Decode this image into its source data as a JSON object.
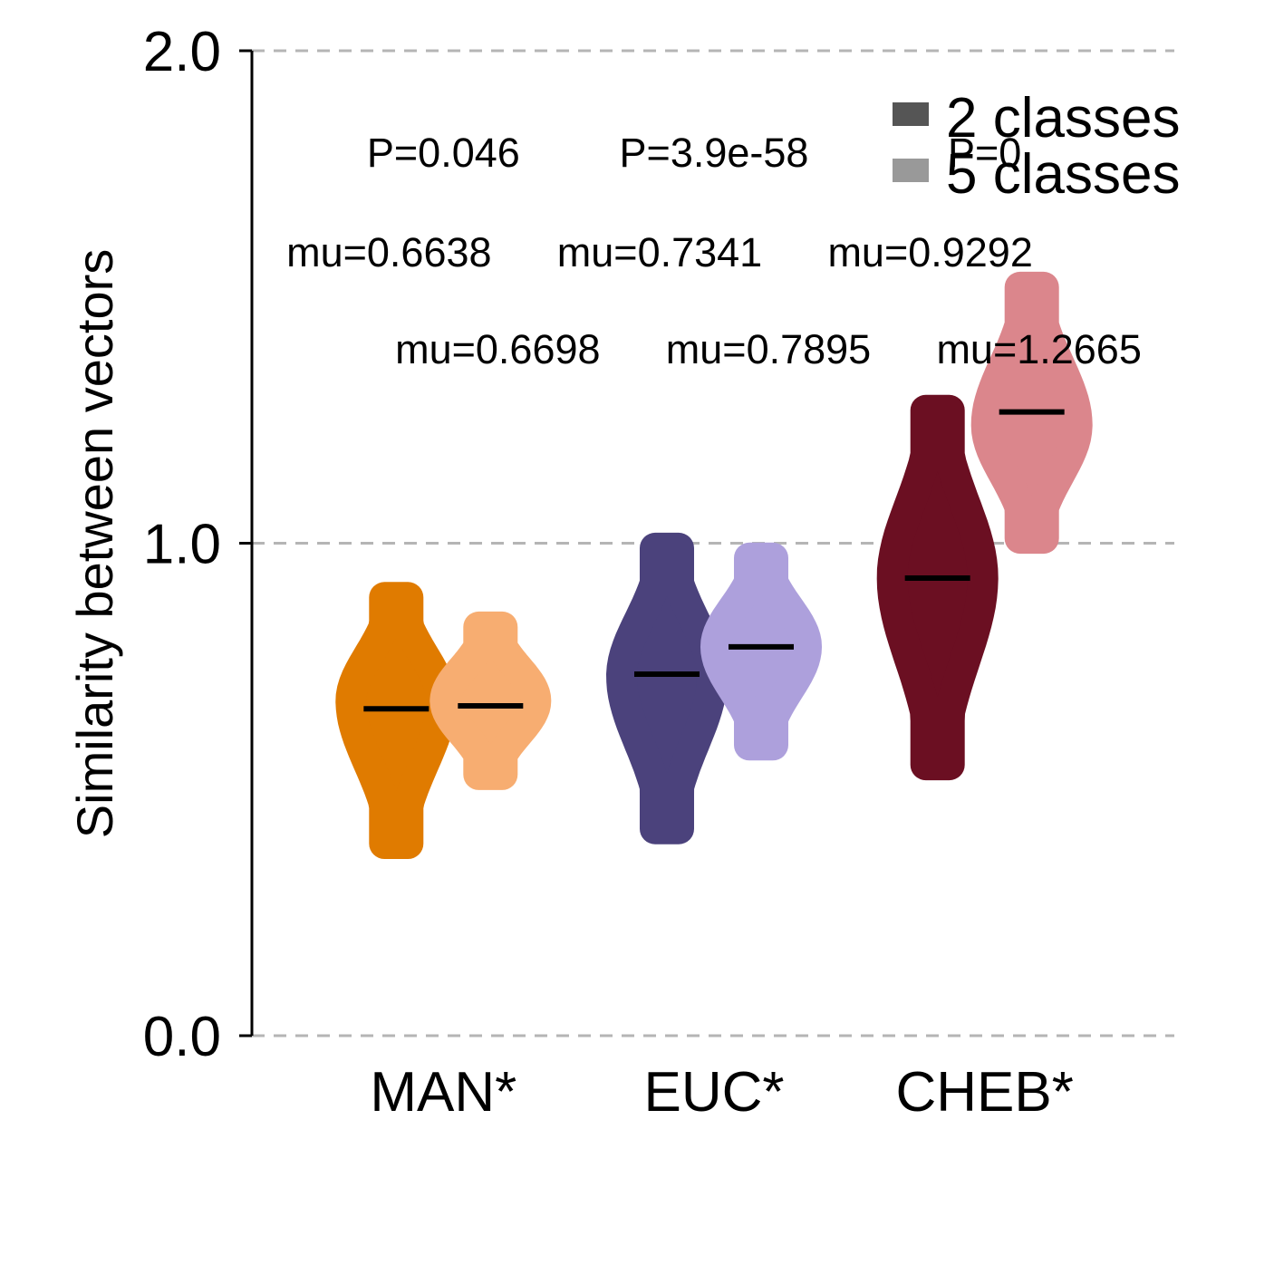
{
  "chart_data": {
    "type": "violin",
    "ylabel": "Similarity between vectors",
    "ylim": [
      0.0,
      2.0
    ],
    "yticks": [
      "0.0",
      "1.0",
      "2.0"
    ],
    "grid": "horizontal dashed at ticks",
    "legend_position": "top-right",
    "categories": [
      "MAN*",
      "EUC*",
      "CHEB*"
    ],
    "series": [
      {
        "name": "2 classes",
        "legend_color": "#555555",
        "colors": [
          "#e07b00",
          "#4b427c",
          "#6b0f22"
        ],
        "means": [
          0.6638,
          0.7341,
          0.9292
        ],
        "mean_labels": [
          "mu=0.6638",
          "mu=0.7341",
          "mu=0.9292"
        ],
        "ranges": [
          [
            0.39,
            0.89
          ],
          [
            0.42,
            0.99
          ],
          [
            0.55,
            1.27
          ]
        ],
        "modes": [
          0.68,
          0.73,
          0.93
        ]
      },
      {
        "name": "5 classes",
        "legend_color": "#999999",
        "colors": [
          "#f7ad71",
          "#ada0dc",
          "#db868c"
        ],
        "means": [
          0.6698,
          0.7895,
          1.2665
        ],
        "mean_labels": [
          "mu=0.6698",
          "mu=0.7895",
          "mu=1.2665"
        ],
        "ranges": [
          [
            0.53,
            0.83
          ],
          [
            0.59,
            0.97
          ],
          [
            1.01,
            1.52
          ]
        ],
        "modes": [
          0.68,
          0.79,
          1.24
        ]
      }
    ],
    "pvalues": [
      "P=0.046",
      "P=3.9e-58",
      "P=0"
    ]
  }
}
